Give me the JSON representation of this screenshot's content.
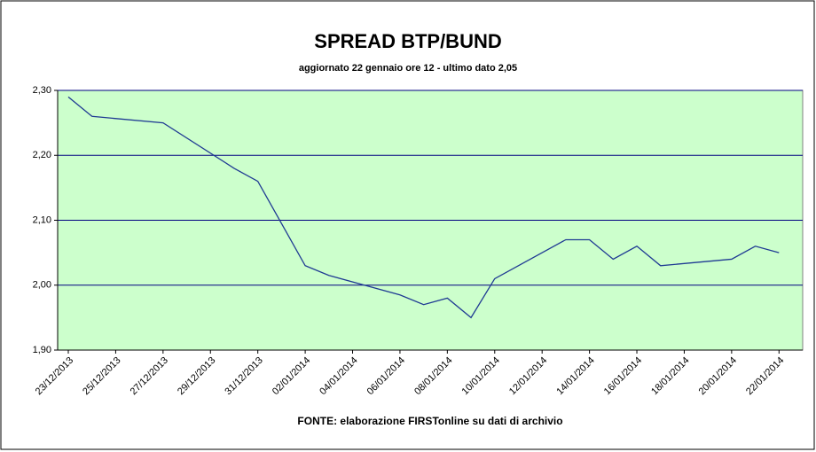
{
  "chart_data": {
    "type": "line",
    "title": "SPREAD BTP/BUND",
    "subtitle": "aggiornato 22 gennaio ore 12 - ultimo dato 2,05",
    "source": "FONTE:  elaborazione FIRSTonline su dati di archivio",
    "x": [
      "23/12/2013",
      "24/12/2013",
      "27/12/2013",
      "30/12/2013",
      "31/12/2013",
      "02/01/2014",
      "03/01/2014",
      "06/01/2014",
      "07/01/2014",
      "08/01/2014",
      "09/01/2014",
      "10/01/2014",
      "13/01/2014",
      "14/01/2014",
      "15/01/2014",
      "16/01/2014",
      "17/01/2014",
      "20/01/2014",
      "21/01/2014",
      "22/01/2014"
    ],
    "series": [
      {
        "name": "Spread",
        "color": "#1f3a93",
        "values": [
          2.29,
          2.26,
          2.25,
          2.18,
          2.16,
          2.03,
          2.015,
          1.985,
          1.97,
          1.98,
          1.95,
          2.01,
          2.07,
          2.07,
          2.04,
          2.06,
          2.03,
          2.04,
          2.06,
          2.05
        ]
      }
    ],
    "xlim": [
      "23/12/2013",
      "23/01/2014"
    ],
    "xticks": [
      "23/12/2013",
      "25/12/2013",
      "27/12/2013",
      "29/12/2013",
      "31/12/2013",
      "02/01/2014",
      "04/01/2014",
      "06/01/2014",
      "08/01/2014",
      "10/01/2014",
      "12/01/2014",
      "14/01/2014",
      "16/01/2014",
      "18/01/2014",
      "20/01/2014",
      "22/01/2014"
    ],
    "ylim": [
      1.9,
      2.3
    ],
    "yticks": [
      {
        "value": 1.9,
        "label": "1,90"
      },
      {
        "value": 2.0,
        "label": "2,00"
      },
      {
        "value": 2.1,
        "label": "2,10"
      },
      {
        "value": 2.2,
        "label": "2,20"
      },
      {
        "value": 2.3,
        "label": "2,30"
      }
    ],
    "grid": true,
    "plot_color": "#ccffcc"
  }
}
